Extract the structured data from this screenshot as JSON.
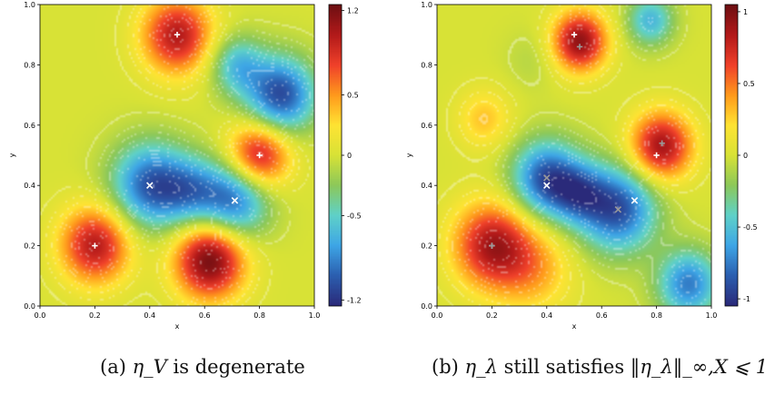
{
  "chart_data": [
    {
      "type": "heatmap",
      "panel_label": "(a)",
      "caption_text": "is degenerate",
      "caption_math": "η_V",
      "xlabel": "x",
      "ylabel": "y",
      "xlim": [
        0.0,
        1.0
      ],
      "ylim": [
        0.0,
        1.0
      ],
      "xticks": [
        "0.0",
        "0.2",
        "0.4",
        "0.6",
        "0.8",
        "1.0"
      ],
      "yticks": [
        "0.0",
        "0.2",
        "0.4",
        "0.6",
        "0.8",
        "1.0"
      ],
      "colorbar": {
        "min": -1.25,
        "max": 1.25,
        "ticks": [
          1.2,
          0.5,
          0,
          -0.5,
          -1.2
        ],
        "tick_labels": [
          "1.2",
          "0.5",
          "0",
          "-0.5",
          "-1.2"
        ]
      },
      "contour_lines": true,
      "peaks": [
        {
          "x": 0.5,
          "y": 0.9,
          "a": 1.0,
          "s": 0.09
        },
        {
          "x": 0.8,
          "y": 0.5,
          "a": 1.0,
          "s": 0.08
        },
        {
          "x": 0.2,
          "y": 0.2,
          "a": 1.0,
          "s": 0.09
        },
        {
          "x": 0.62,
          "y": 0.15,
          "a": 1.25,
          "s": 0.09
        },
        {
          "x": 0.4,
          "y": 0.4,
          "a": -1.0,
          "s": 0.1
        },
        {
          "x": 0.71,
          "y": 0.35,
          "a": -0.95,
          "s": 0.09
        },
        {
          "x": 0.55,
          "y": 0.38,
          "a": -0.6,
          "s": 0.08
        },
        {
          "x": 0.88,
          "y": 0.7,
          "a": -1.1,
          "s": 0.09
        },
        {
          "x": 0.72,
          "y": 0.8,
          "a": -0.6,
          "s": 0.07
        }
      ],
      "markers": [
        {
          "x": 0.5,
          "y": 0.9,
          "symbol": "+",
          "color": "#ffffff"
        },
        {
          "x": 0.8,
          "y": 0.5,
          "symbol": "+",
          "color": "#ffffff"
        },
        {
          "x": 0.2,
          "y": 0.2,
          "symbol": "+",
          "color": "#ffffff"
        },
        {
          "x": 0.4,
          "y": 0.4,
          "symbol": "x",
          "color": "#ffffff"
        },
        {
          "x": 0.71,
          "y": 0.35,
          "symbol": "x",
          "color": "#ffffff"
        }
      ]
    },
    {
      "type": "heatmap",
      "panel_label": "(b)",
      "caption_text": "still satisfies",
      "caption_math": "η_λ",
      "caption_norm": "‖η_λ‖_∞,X ⩽ 1",
      "xlabel": "x",
      "ylabel": "y",
      "xlim": [
        0.0,
        1.0
      ],
      "ylim": [
        0.0,
        1.0
      ],
      "xticks": [
        "0.0",
        "0.2",
        "0.4",
        "0.6",
        "0.8",
        "1.0"
      ],
      "yticks": [
        "0.0",
        "0.2",
        "0.4",
        "0.6",
        "0.8",
        "1.0"
      ],
      "colorbar": {
        "min": -1.05,
        "max": 1.05,
        "ticks": [
          1,
          0.5,
          0,
          -0.5,
          -1
        ],
        "tick_labels": [
          "1",
          "0.5",
          "0",
          "-0.5",
          "-1"
        ]
      },
      "contour_lines": true,
      "peaks": [
        {
          "x": 0.52,
          "y": 0.88,
          "a": 0.95,
          "s": 0.07
        },
        {
          "x": 0.82,
          "y": 0.53,
          "a": 0.9,
          "s": 0.08
        },
        {
          "x": 0.2,
          "y": 0.2,
          "a": 0.85,
          "s": 0.1
        },
        {
          "x": 0.35,
          "y": 0.12,
          "a": 0.35,
          "s": 0.1
        },
        {
          "x": 0.17,
          "y": 0.62,
          "a": 0.3,
          "s": 0.07
        },
        {
          "x": 0.4,
          "y": 0.42,
          "a": -0.9,
          "s": 0.09
        },
        {
          "x": 0.66,
          "y": 0.32,
          "a": -0.9,
          "s": 0.1
        },
        {
          "x": 0.52,
          "y": 0.37,
          "a": -0.5,
          "s": 0.07
        },
        {
          "x": 0.92,
          "y": 0.07,
          "a": -0.75,
          "s": 0.08
        },
        {
          "x": 0.78,
          "y": 0.95,
          "a": -0.55,
          "s": 0.06
        },
        {
          "x": 0.35,
          "y": 0.82,
          "a": -0.1,
          "s": 0.07
        }
      ],
      "markers": [
        {
          "x": 0.5,
          "y": 0.9,
          "symbol": "+",
          "color": "#ffffff"
        },
        {
          "x": 0.52,
          "y": 0.86,
          "symbol": "+",
          "color": "#999999"
        },
        {
          "x": 0.8,
          "y": 0.5,
          "symbol": "+",
          "color": "#ffffff"
        },
        {
          "x": 0.82,
          "y": 0.54,
          "symbol": "+",
          "color": "#999999"
        },
        {
          "x": 0.2,
          "y": 0.2,
          "symbol": "+",
          "color": "#ffffff"
        },
        {
          "x": 0.2,
          "y": 0.2,
          "symbol": "+",
          "color": "#999999"
        },
        {
          "x": 0.4,
          "y": 0.4,
          "symbol": "x",
          "color": "#ffffff"
        },
        {
          "x": 0.4,
          "y": 0.425,
          "symbol": "x",
          "color": "#999999"
        },
        {
          "x": 0.72,
          "y": 0.35,
          "symbol": "x",
          "color": "#ffffff"
        },
        {
          "x": 0.66,
          "y": 0.32,
          "symbol": "x",
          "color": "#999999"
        }
      ]
    }
  ],
  "colormap": [
    "#2a2a7a",
    "#2b5fb0",
    "#3ea6e6",
    "#5fd1c8",
    "#8cc85a",
    "#d8e236",
    "#ffe333",
    "#ff9a1c",
    "#f0412a",
    "#b31a1a",
    "#6e0f12"
  ]
}
